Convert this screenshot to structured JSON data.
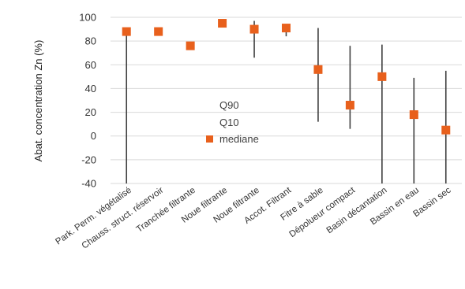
{
  "chart_data": {
    "type": "scatter",
    "ylabel": "Abat. concentration Zn (%)",
    "ylim": [
      -40,
      100
    ],
    "yticks": [
      -40,
      -20,
      0,
      20,
      40,
      60,
      80,
      100
    ],
    "grid": true,
    "categories": [
      "Park. Perm. végétalisé",
      "Chauss. struct. réservoir",
      "Tranchée filtrante",
      "Noue filtrante",
      "Noue filtrante",
      "Accot. Filtrant",
      "Fitre à sable",
      "Dépolueur compact",
      "Basin décantation",
      "Bassin en eau",
      "Bassin sec"
    ],
    "series": [
      {
        "name": "Q90",
        "values": [
          null,
          null,
          null,
          null,
          97,
          92,
          91,
          76,
          77,
          49,
          55
        ]
      },
      {
        "name": "Q10",
        "values": [
          -40,
          null,
          null,
          null,
          66,
          84,
          12,
          6,
          -40,
          -40,
          -40
        ]
      },
      {
        "name": "mediane",
        "values": [
          88,
          88,
          76,
          95,
          90,
          91,
          56,
          26,
          50,
          18,
          5
        ]
      }
    ],
    "marker_color": "#e8601c",
    "whisker_color": "#404040",
    "legend_position": "center"
  }
}
